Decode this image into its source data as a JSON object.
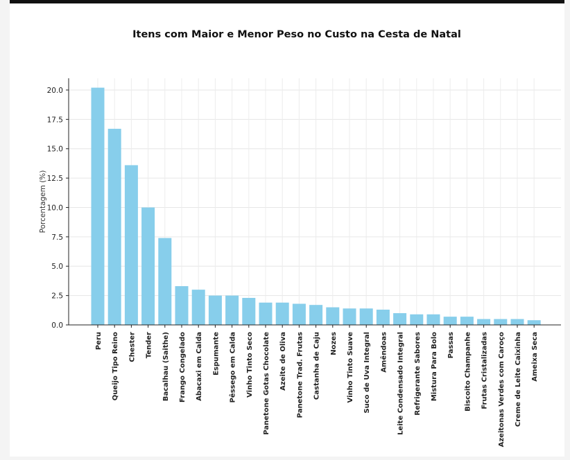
{
  "chart_data": {
    "type": "bar",
    "title": "Itens com Maior e Menor Peso no Custo na Cesta de Natal",
    "xlabel": "",
    "ylabel": "Porcentagem (%)",
    "ylim": [
      0,
      21
    ],
    "yticks": [
      "0.0",
      "2.5",
      "5.0",
      "7.5",
      "10.0",
      "12.5",
      "15.0",
      "17.5",
      "20.0"
    ],
    "grid": true,
    "bar_color": "#87ceeb",
    "categories": [
      "Peru",
      "Queijo Tipo Reino",
      "Chester",
      "Tender",
      "Bacalhau (Saithe)",
      "Frango Congelado",
      "Abacaxi em Calda",
      "Espumante",
      "Pêssego em Calda",
      "Vinho Tinto Seco",
      "Panetone Gotas Chocolate",
      "Azeite de Oliva",
      "Panetone Trad. Frutas",
      "Castanha de Caju",
      "Nozes",
      "Vinho Tinto Suave",
      "Suco de Uva Integral",
      "Amêndoas",
      "Leite Condensado Integral",
      "Refrigerante Sabores",
      "Mistura Para Bolo",
      "Passas",
      "Biscoito Champanhe",
      "Frutas Cristalizadas",
      "Azeitonas Verdes com Caroço",
      "Creme de Leite Caixinha",
      "Ameixa Seca"
    ],
    "values": [
      20.2,
      16.7,
      13.6,
      10.0,
      7.4,
      3.3,
      3.0,
      2.5,
      2.5,
      2.3,
      1.9,
      1.9,
      1.8,
      1.7,
      1.5,
      1.4,
      1.4,
      1.3,
      1.0,
      0.9,
      0.9,
      0.7,
      0.7,
      0.5,
      0.5,
      0.5,
      0.4
    ]
  }
}
